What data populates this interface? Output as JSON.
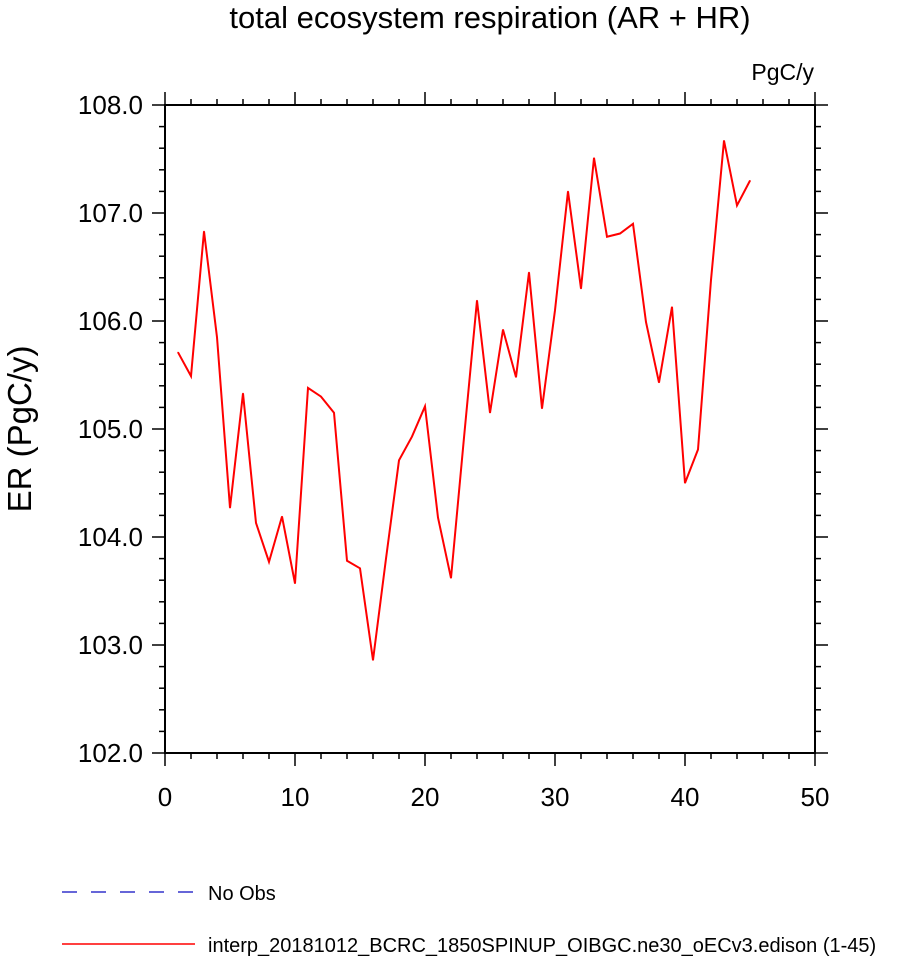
{
  "chart_data": {
    "type": "line",
    "title": "total ecosystem respiration (AR + HR)",
    "units_label": "PgC/y",
    "ylabel": "ER  (PgC/y)",
    "xlabel": "",
    "xlim": [
      0,
      50
    ],
    "ylim": [
      102.0,
      108.0
    ],
    "x_ticks": [
      0,
      10,
      20,
      30,
      40,
      50
    ],
    "x_tick_labels": [
      "0",
      "10",
      "20",
      "30",
      "40",
      "50"
    ],
    "y_ticks": [
      102.0,
      103.0,
      104.0,
      105.0,
      106.0,
      107.0,
      108.0
    ],
    "y_tick_labels": [
      "102.0",
      "103.0",
      "104.0",
      "105.0",
      "106.0",
      "107.0",
      "108.0"
    ],
    "grid": false,
    "legend_position": "bottom",
    "series": [
      {
        "name": "interp_20181012_BCRC_1850SPINUP_OIBGC.ne30_oECv3.edison (1-45)",
        "color": "#ff0000",
        "dash": "solid",
        "x": [
          1,
          2,
          3,
          4,
          5,
          6,
          7,
          8,
          9,
          10,
          11,
          12,
          13,
          14,
          15,
          16,
          17,
          18,
          19,
          20,
          21,
          22,
          23,
          24,
          25,
          26,
          27,
          28,
          29,
          30,
          31,
          32,
          33,
          34,
          35,
          36,
          37,
          38,
          39,
          40,
          41,
          42,
          43,
          44,
          45
        ],
        "values": [
          105.71,
          105.49,
          106.83,
          105.85,
          104.27,
          105.33,
          104.13,
          103.77,
          104.19,
          103.57,
          105.38,
          105.3,
          105.15,
          103.78,
          103.71,
          102.86,
          103.8,
          104.71,
          104.93,
          105.21,
          104.18,
          103.62,
          104.92,
          106.19,
          105.15,
          105.92,
          105.48,
          106.45,
          105.19,
          106.1,
          107.2,
          106.3,
          107.51,
          106.78,
          106.81,
          106.9,
          105.99,
          105.43,
          106.13,
          104.5,
          104.81,
          106.38,
          107.67,
          107.07,
          107.3
        ]
      },
      {
        "name": "No Obs",
        "color": "#3333cc",
        "dash": "dashed",
        "x": [],
        "values": []
      }
    ]
  },
  "legend": [
    {
      "label": "No Obs",
      "color": "#3333cc",
      "dash": "dashed"
    },
    {
      "label": "interp_20181012_BCRC_1850SPINUP_OIBGC.ne30_oECv3.edison (1-45)",
      "color": "#ff0000",
      "dash": "solid"
    }
  ]
}
